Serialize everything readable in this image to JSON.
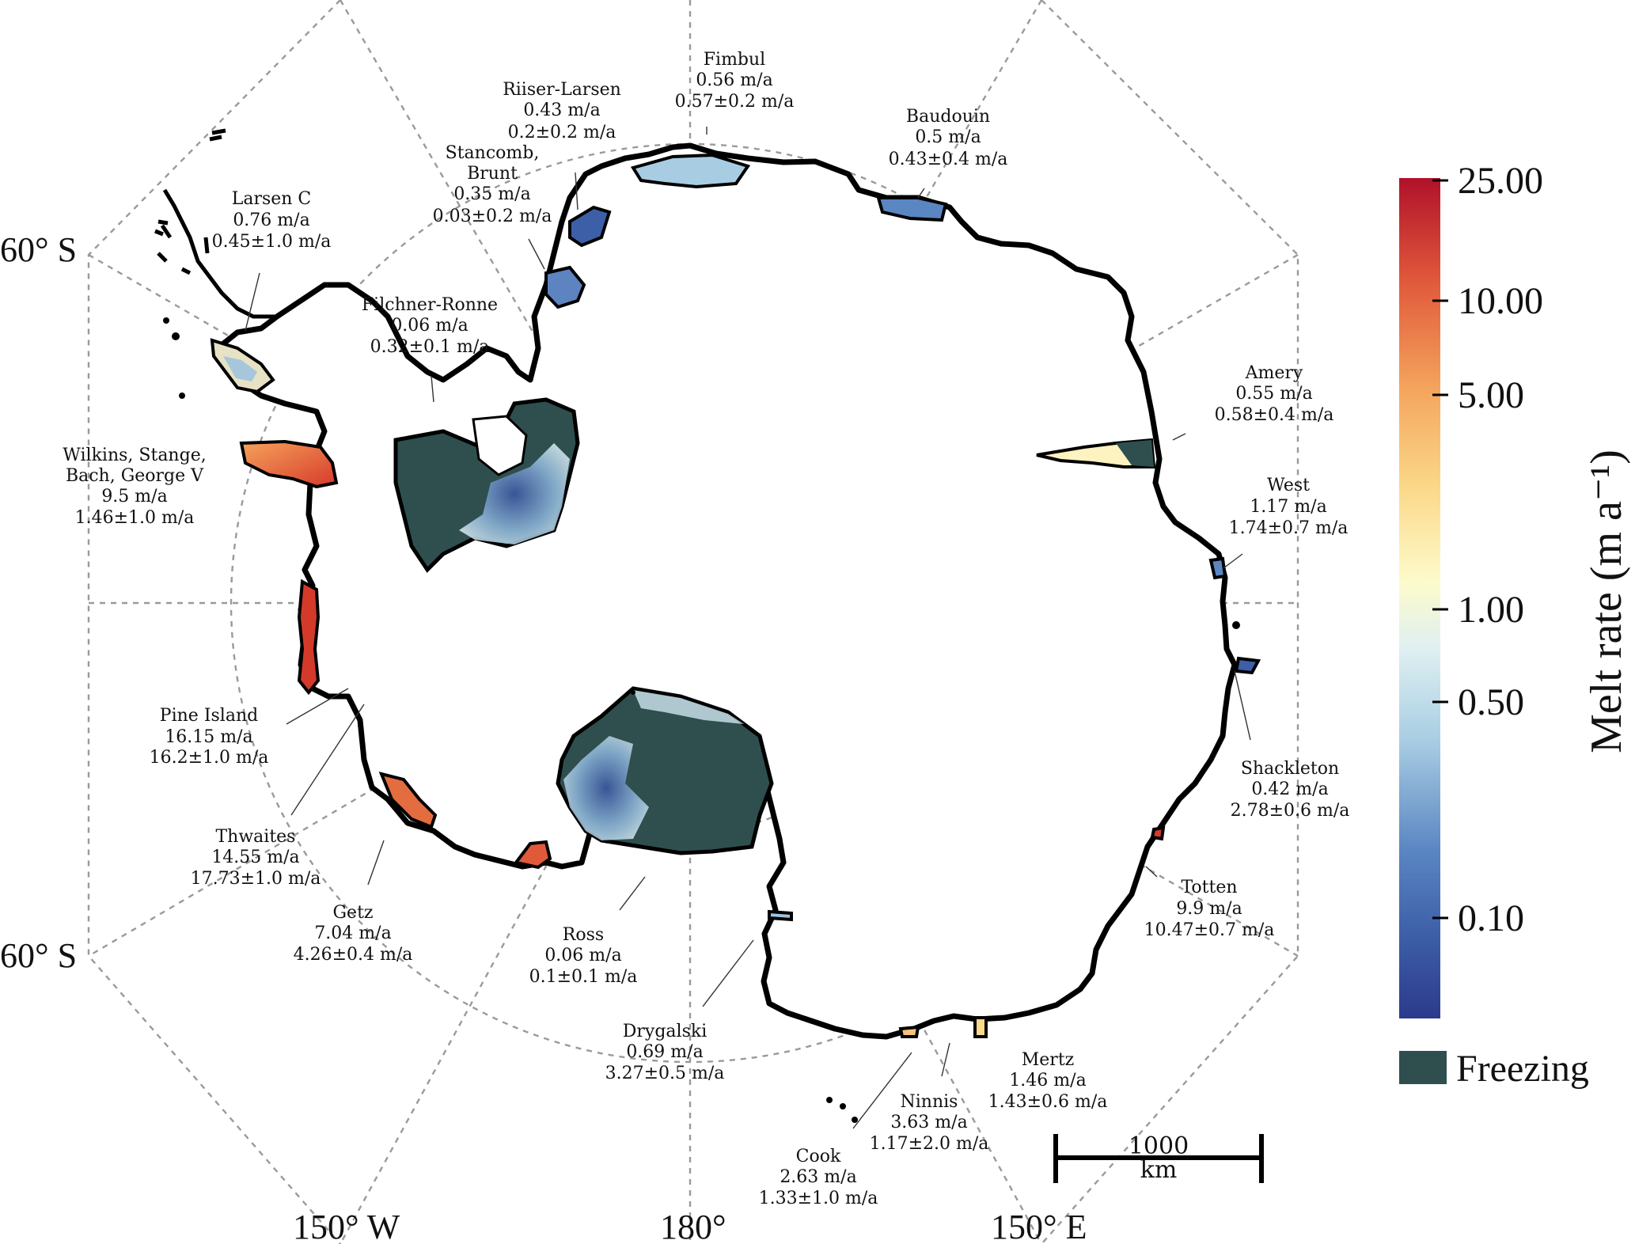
{
  "map": {
    "graticule_labels": {
      "lat_upper_left": "60° S",
      "lat_lower_left": "60° S",
      "lon_left": "150° W",
      "lon_center": "180°",
      "lon_right": "150° E"
    },
    "scale_bar": {
      "value": "1000",
      "unit": "km"
    },
    "ice_shelves": [
      {
        "id": "fimbul",
        "name": "Fimbul",
        "melt": "0.56 m/a",
        "range": "0.57±0.2 m/a"
      },
      {
        "id": "riiser",
        "name": "Riiser-Larsen",
        "melt": "0.43 m/a",
        "range": "0.2±0.2 m/a"
      },
      {
        "id": "baudouin",
        "name": "Baudouin",
        "melt": "0.5 m/a",
        "range": "0.43±0.4 m/a"
      },
      {
        "id": "stancomb",
        "name": [
          "Stancomb,",
          "Brunt"
        ],
        "melt": "0.35 m/a",
        "range": "0.03±0.2 m/a"
      },
      {
        "id": "larsenc",
        "name": "Larsen C",
        "melt": "0.76 m/a",
        "range": "0.45±1.0 m/a"
      },
      {
        "id": "filchner",
        "name": "Filchner-Ronne",
        "melt": "0.06 m/a",
        "range": "0.32±0.1 m/a"
      },
      {
        "id": "wilkins",
        "name": [
          "Wilkins, Stange,",
          "Bach, George V"
        ],
        "melt": "9.5 m/a",
        "range": "1.46±1.0 m/a"
      },
      {
        "id": "amery",
        "name": "Amery",
        "melt": "0.55 m/a",
        "range": "0.58±0.4 m/a"
      },
      {
        "id": "west",
        "name": "West",
        "melt": "1.17 m/a",
        "range": "1.74±0.7 m/a"
      },
      {
        "id": "shackleton",
        "name": "Shackleton",
        "melt": "0.42 m/a",
        "range": "2.78±0.6 m/a"
      },
      {
        "id": "pineisland",
        "name": "Pine Island",
        "melt": "16.15 m/a",
        "range": "16.2±1.0 m/a"
      },
      {
        "id": "thwaites",
        "name": "Thwaites",
        "melt": "14.55 m/a",
        "range": "17.73±1.0 m/a"
      },
      {
        "id": "getz",
        "name": "Getz",
        "melt": "7.04 m/a",
        "range": "4.26±0.4 m/a"
      },
      {
        "id": "ross",
        "name": "Ross",
        "melt": "0.06 m/a",
        "range": "0.1±0.1 m/a"
      },
      {
        "id": "totten",
        "name": "Totten",
        "melt": "9.9 m/a",
        "range": "10.47±0.7 m/a"
      },
      {
        "id": "drygalski",
        "name": "Drygalski",
        "melt": "0.69 m/a",
        "range": "3.27±0.5 m/a"
      },
      {
        "id": "mertz",
        "name": "Mertz",
        "melt": "1.46 m/a",
        "range": "1.43±0.6 m/a"
      },
      {
        "id": "ninnis",
        "name": "Ninnis",
        "melt": "3.63 m/a",
        "range": "1.17±2.0 m/a"
      },
      {
        "id": "cook",
        "name": "Cook",
        "melt": "2.63 m/a",
        "range": "1.33±1.0 m/a"
      }
    ]
  },
  "colorbar": {
    "title": "Melt rate (m a⁻¹)",
    "ticks": [
      {
        "label": "25.00",
        "value": 25
      },
      {
        "label": "10.00",
        "value": 10
      },
      {
        "label": "5.00",
        "value": 5
      },
      {
        "label": "1.00",
        "value": 1
      },
      {
        "label": "0.50",
        "value": 0.5
      },
      {
        "label": "0.10",
        "value": 0.1
      }
    ],
    "colors": [
      "#2c3a8c",
      "#3d5fa8",
      "#5a86c2",
      "#a8cde3",
      "#dff0f2",
      "#fdfbcb",
      "#fbd98a",
      "#f4a45d",
      "#e0573a",
      "#b0112a"
    ],
    "legend_freezing": {
      "label": "Freezing",
      "color": "#2f4f4f"
    }
  }
}
